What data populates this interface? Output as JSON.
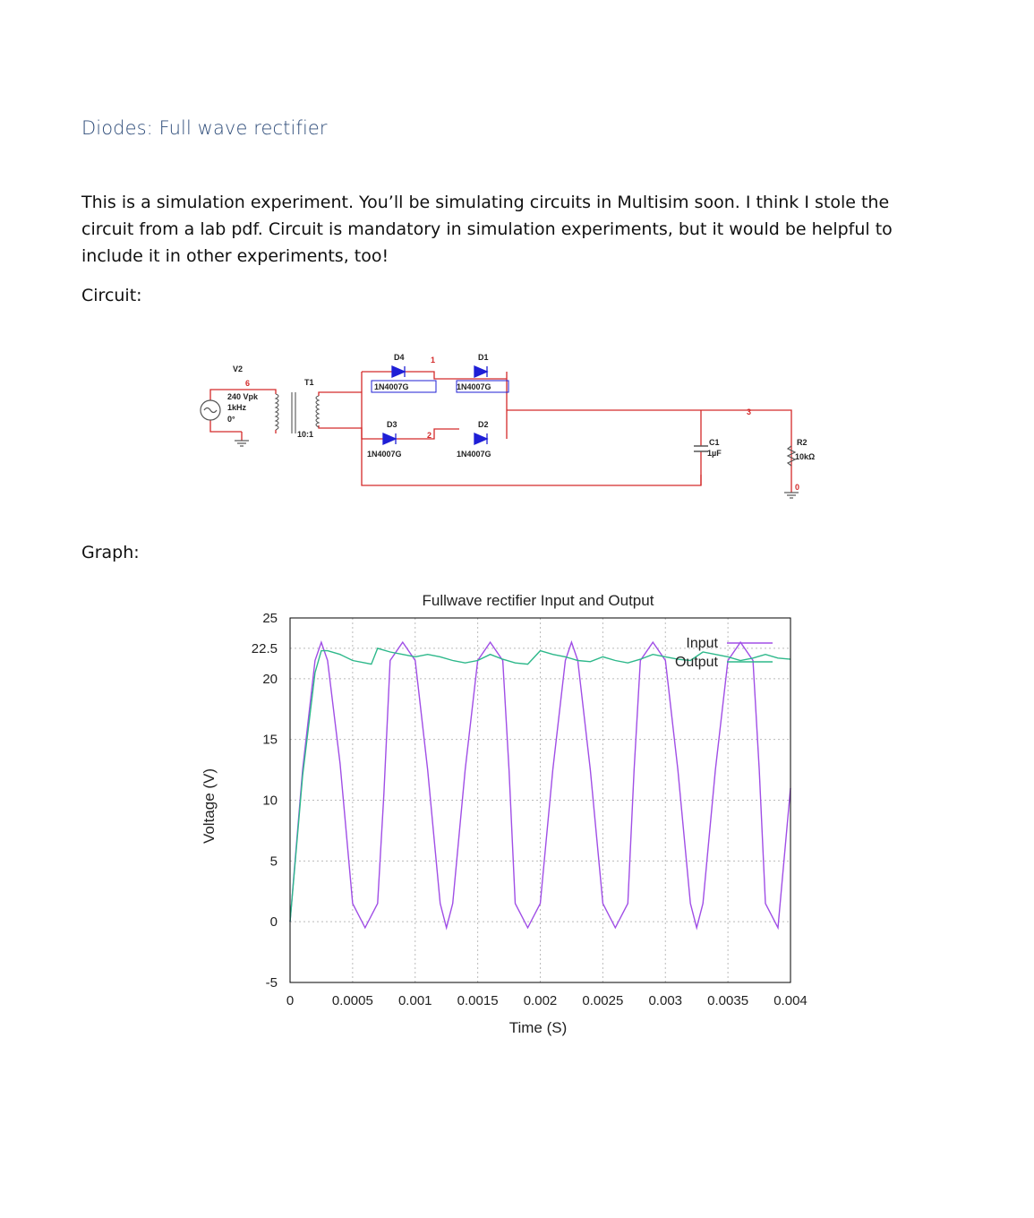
{
  "heading": "Diodes: Full wave rectifier",
  "paragraph": "This is a simulation experiment. You’ll be simulating circuits in Multisim soon. I think I stole the circuit from a lab pdf. Circuit is mandatory in simulation experiments, but it would be helpful to include it in other experiments, too!",
  "circuit_label": "Circuit:",
  "graph_label": "Graph:",
  "circuit": {
    "source_name": "V2",
    "source_amplitude": "240 Vpk",
    "source_freq": "1kHz",
    "source_phase": "0°",
    "node_6": "6",
    "transformer_name": "T1",
    "transformer_ratio": "10:1",
    "d4_name": "D4",
    "d3_name": "D3",
    "d1_name": "D1",
    "d2_name": "D2",
    "diode_model": "1N4007G",
    "node_1": "1",
    "node_2": "2",
    "node_3": "3",
    "node_0": "0",
    "c1_name": "C1",
    "c1_value": "1µF",
    "r2_name": "R2",
    "r2_value": "10kΩ",
    "wire_color": "#d42a2a",
    "diode_color": "#1f1fd6"
  },
  "chart_data": {
    "type": "line",
    "title": "Fullwave rectifier Input and Output",
    "xlabel": "Time (S)",
    "ylabel": "Voltage (V)",
    "xlim": [
      0,
      0.004
    ],
    "ylim": [
      -5,
      25
    ],
    "xticks": [
      "0",
      "0.0005",
      "0.001",
      "0.0015",
      "0.002",
      "0.0025",
      "0.003",
      "0.0035",
      "0.004"
    ],
    "yticks": [
      "25",
      "22.5",
      "20",
      "15",
      "10",
      "5",
      "0",
      "-5"
    ],
    "grid": true,
    "legend_position": "top-right",
    "series": [
      {
        "name": "Input",
        "color": "#a04ee6",
        "x": [
          0,
          0.0001,
          0.0002,
          0.00025,
          0.0003,
          0.0004,
          0.0005,
          0.0006,
          0.0007,
          0.00075,
          0.0008,
          0.0009,
          0.001,
          0.0011,
          0.0012,
          0.00125,
          0.0013,
          0.0014,
          0.0015,
          0.0016,
          0.0017,
          0.00175,
          0.0018,
          0.0019,
          0.002,
          0.0021,
          0.0022,
          0.00225,
          0.0023,
          0.0024,
          0.0025,
          0.0026,
          0.0027,
          0.00275,
          0.0028,
          0.0029,
          0.003,
          0.0031,
          0.0032,
          0.00325,
          0.0033,
          0.0034,
          0.0035,
          0.0036,
          0.0037,
          0.00375,
          0.0038,
          0.0039,
          0.004
        ],
        "values": [
          0,
          12.5,
          21.5,
          23,
          21.5,
          13,
          1.5,
          -0.5,
          1.5,
          10.5,
          21.5,
          23,
          21.5,
          12.5,
          1.5,
          -0.5,
          1.5,
          12.5,
          21.5,
          23,
          21.5,
          12.5,
          1.5,
          -0.5,
          1.5,
          12.5,
          21.5,
          23,
          21.5,
          12.5,
          1.5,
          -0.5,
          1.5,
          12.5,
          21.5,
          23,
          21.5,
          12.5,
          1.5,
          -0.5,
          1.5,
          12.5,
          21.5,
          23,
          21.5,
          12.5,
          1.5,
          -0.5,
          11
        ]
      },
      {
        "name": "Output",
        "color": "#2db88a",
        "x": [
          0,
          0.0001,
          0.0002,
          0.00025,
          0.0003,
          0.0004,
          0.0005,
          0.0006,
          0.00065,
          0.0007,
          0.0008,
          0.0009,
          0.001,
          0.0011,
          0.0012,
          0.0013,
          0.0014,
          0.0015,
          0.0016,
          0.0017,
          0.0018,
          0.0019,
          0.002,
          0.0021,
          0.0022,
          0.0023,
          0.0024,
          0.0025,
          0.0026,
          0.0027,
          0.0028,
          0.0029,
          0.003,
          0.0031,
          0.0032,
          0.0033,
          0.0034,
          0.0035,
          0.0036,
          0.0037,
          0.0038,
          0.0039,
          0.004
        ],
        "values": [
          0,
          12,
          20.5,
          22.3,
          22.3,
          22,
          21.5,
          21.3,
          21.2,
          22.5,
          22.2,
          22,
          21.8,
          22,
          21.8,
          21.5,
          21.3,
          21.5,
          22,
          21.6,
          21.3,
          21.2,
          22.3,
          22,
          21.8,
          21.5,
          21.4,
          21.8,
          21.5,
          21.3,
          21.6,
          22,
          21.8,
          21.6,
          21.5,
          22.2,
          22,
          21.8,
          21.5,
          21.7,
          22,
          21.7,
          21.6
        ]
      }
    ]
  }
}
